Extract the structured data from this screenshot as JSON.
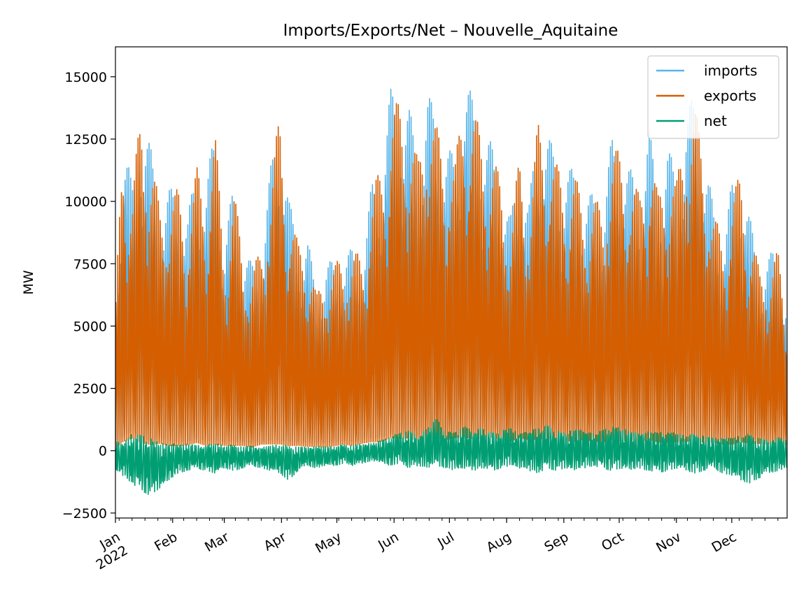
{
  "chart_data": {
    "type": "line",
    "title": "Imports/Exports/Net – Nouvelle_Aquitaine",
    "xlabel": "",
    "ylabel": "MW",
    "xlim": [
      "2022-01-01",
      "2022-12-31"
    ],
    "ylim": [
      -2700,
      16200
    ],
    "y_ticks": [
      {
        "value": -2500,
        "label": "−2500"
      },
      {
        "value": 0,
        "label": "0"
      },
      {
        "value": 2500,
        "label": "2500"
      },
      {
        "value": 5000,
        "label": "5000"
      },
      {
        "value": 7500,
        "label": "7500"
      },
      {
        "value": 10000,
        "label": "10000"
      },
      {
        "value": 12500,
        "label": "12500"
      },
      {
        "value": 15000,
        "label": "15000"
      }
    ],
    "x_ticks": [
      {
        "date": "2022-01-01",
        "label": "Jan",
        "label2": "2022"
      },
      {
        "date": "2022-02-01",
        "label": "Feb"
      },
      {
        "date": "2022-03-01",
        "label": "Mar"
      },
      {
        "date": "2022-04-01",
        "label": "Apr"
      },
      {
        "date": "2022-05-01",
        "label": "May"
      },
      {
        "date": "2022-06-01",
        "label": "Jun"
      },
      {
        "date": "2022-07-01",
        "label": "Jul"
      },
      {
        "date": "2022-08-01",
        "label": "Aug"
      },
      {
        "date": "2022-09-01",
        "label": "Sep"
      },
      {
        "date": "2022-10-01",
        "label": "Oct"
      },
      {
        "date": "2022-11-01",
        "label": "Nov"
      },
      {
        "date": "2022-12-01",
        "label": "Dec"
      }
    ],
    "legend": {
      "placement": "top-right"
    },
    "grid": false,
    "series": [
      {
        "name": "imports",
        "color": "#56b4e9",
        "x": [
          "2022-01-01",
          "2022-01-05",
          "2022-01-10",
          "2022-01-15",
          "2022-01-20",
          "2022-01-25",
          "2022-01-30",
          "2022-02-04",
          "2022-02-09",
          "2022-02-14",
          "2022-02-19",
          "2022-02-24",
          "2022-03-01",
          "2022-03-06",
          "2022-03-11",
          "2022-03-16",
          "2022-03-21",
          "2022-03-26",
          "2022-03-31",
          "2022-04-05",
          "2022-04-10",
          "2022-04-15",
          "2022-04-20",
          "2022-04-25",
          "2022-04-30",
          "2022-05-05",
          "2022-05-10",
          "2022-05-15",
          "2022-05-20",
          "2022-05-25",
          "2022-05-30",
          "2022-06-04",
          "2022-06-09",
          "2022-06-14",
          "2022-06-19",
          "2022-06-24",
          "2022-06-29",
          "2022-07-04",
          "2022-07-09",
          "2022-07-14",
          "2022-07-19",
          "2022-07-24",
          "2022-07-29",
          "2022-08-03",
          "2022-08-08",
          "2022-08-13",
          "2022-08-18",
          "2022-08-23",
          "2022-08-28",
          "2022-09-02",
          "2022-09-07",
          "2022-09-12",
          "2022-09-17",
          "2022-09-22",
          "2022-09-27",
          "2022-10-02",
          "2022-10-07",
          "2022-10-12",
          "2022-10-17",
          "2022-10-22",
          "2022-10-27",
          "2022-11-01",
          "2022-11-06",
          "2022-11-11",
          "2022-11-16",
          "2022-11-21",
          "2022-11-26",
          "2022-12-01",
          "2022-12-06",
          "2022-12-11",
          "2022-12-16",
          "2022-12-21",
          "2022-12-26",
          "2022-12-31"
        ],
        "peak": [
          5800,
          13400,
          10500,
          13900,
          12200,
          10000,
          10500,
          10600,
          9300,
          11600,
          10600,
          13100,
          8400,
          10700,
          8200,
          7500,
          8300,
          11300,
          14000,
          10100,
          8500,
          8700,
          6300,
          7600,
          7600,
          8000,
          8100,
          7900,
          10800,
          11700,
          14500,
          14500,
          13900,
          11900,
          14500,
          13400,
          12300,
          11800,
          15300,
          14000,
          13000,
          12300,
          11000,
          9300,
          12100,
          9800,
          13500,
          12800,
          11800,
          11200,
          11400,
          10000,
          10400,
          10000,
          12600,
          12200,
          11300,
          10600,
          13100,
          10500,
          12400,
          11000,
          13600,
          14300,
          12100,
          9800,
          8700,
          10700,
          11400,
          9300,
          7400,
          7800,
          8300,
          5800
        ],
        "trough": [
          200,
          300,
          600,
          250,
          150,
          300,
          200,
          150,
          200,
          250,
          200,
          150,
          200,
          150,
          200,
          150,
          250,
          200,
          150,
          150,
          200,
          150,
          200,
          150,
          200,
          250,
          200,
          300,
          300,
          300,
          400,
          350,
          400,
          300,
          350,
          400,
          350,
          450,
          400,
          350,
          400,
          450,
          400,
          350,
          450,
          400,
          350,
          400,
          300,
          350,
          300,
          400,
          350,
          300,
          350,
          300,
          350,
          300,
          350,
          300,
          250,
          300,
          250,
          300,
          250,
          300,
          250,
          200,
          300,
          250,
          300,
          250,
          300,
          250
        ]
      },
      {
        "name": "exports",
        "color": "#d55e00",
        "x": [
          "2022-01-01",
          "2022-01-05",
          "2022-01-10",
          "2022-01-15",
          "2022-01-20",
          "2022-01-25",
          "2022-01-30",
          "2022-02-04",
          "2022-02-09",
          "2022-02-14",
          "2022-02-19",
          "2022-02-24",
          "2022-03-01",
          "2022-03-06",
          "2022-03-11",
          "2022-03-16",
          "2022-03-21",
          "2022-03-26",
          "2022-03-31",
          "2022-04-05",
          "2022-04-10",
          "2022-04-15",
          "2022-04-20",
          "2022-04-25",
          "2022-04-30",
          "2022-05-05",
          "2022-05-10",
          "2022-05-15",
          "2022-05-20",
          "2022-05-25",
          "2022-05-30",
          "2022-06-04",
          "2022-06-09",
          "2022-06-14",
          "2022-06-19",
          "2022-06-24",
          "2022-06-29",
          "2022-07-04",
          "2022-07-09",
          "2022-07-14",
          "2022-07-19",
          "2022-07-24",
          "2022-07-29",
          "2022-08-03",
          "2022-08-08",
          "2022-08-13",
          "2022-08-18",
          "2022-08-23",
          "2022-08-28",
          "2022-09-02",
          "2022-09-07",
          "2022-09-12",
          "2022-09-17",
          "2022-09-22",
          "2022-09-27",
          "2022-10-02",
          "2022-10-07",
          "2022-10-12",
          "2022-10-17",
          "2022-10-22",
          "2022-10-27",
          "2022-11-01",
          "2022-11-06",
          "2022-11-11",
          "2022-11-16",
          "2022-11-21",
          "2022-11-26",
          "2022-12-01",
          "2022-12-06",
          "2022-12-11",
          "2022-12-16",
          "2022-12-21",
          "2022-12-26",
          "2022-12-31"
        ],
        "peak": [
          5500,
          13100,
          10300,
          13900,
          12100,
          9800,
          10300,
          10500,
          9200,
          11400,
          10500,
          12800,
          8200,
          10600,
          8000,
          7300,
          8100,
          11000,
          13500,
          9900,
          8300,
          8600,
          6200,
          7500,
          7500,
          7900,
          8000,
          7800,
          10500,
          11400,
          13900,
          14000,
          13500,
          11600,
          14300,
          13000,
          12000,
          11500,
          14600,
          13600,
          12700,
          12000,
          10800,
          9100,
          11800,
          9600,
          13200,
          12500,
          11500,
          10900,
          11100,
          9800,
          10200,
          9700,
          12300,
          11900,
          11000,
          10300,
          12800,
          10200,
          12100,
          10700,
          13500,
          13900,
          11800,
          9600,
          8500,
          10400,
          11100,
          9100,
          7200,
          7600,
          8000,
          5500
        ],
        "trough": [
          0,
          100,
          300,
          50,
          0,
          100,
          0,
          0,
          50,
          100,
          0,
          0,
          50,
          0,
          50,
          0,
          100,
          50,
          0,
          0,
          50,
          0,
          50,
          0,
          50,
          100,
          50,
          150,
          150,
          150,
          250,
          200,
          250,
          150,
          200,
          250,
          200,
          300,
          250,
          200,
          250,
          300,
          250,
          200,
          300,
          250,
          200,
          250,
          150,
          200,
          150,
          250,
          200,
          150,
          200,
          150,
          200,
          150,
          200,
          150,
          100,
          150,
          100,
          150,
          100,
          150,
          100,
          50,
          150,
          100,
          150,
          100,
          150,
          100
        ]
      },
      {
        "name": "net",
        "color": "#009e73",
        "x": [
          "2022-01-01",
          "2022-01-05",
          "2022-01-10",
          "2022-01-15",
          "2022-01-20",
          "2022-01-25",
          "2022-01-30",
          "2022-02-04",
          "2022-02-09",
          "2022-02-14",
          "2022-02-19",
          "2022-02-24",
          "2022-03-01",
          "2022-03-06",
          "2022-03-11",
          "2022-03-16",
          "2022-03-21",
          "2022-03-26",
          "2022-03-31",
          "2022-04-05",
          "2022-04-10",
          "2022-04-15",
          "2022-04-20",
          "2022-04-25",
          "2022-04-30",
          "2022-05-05",
          "2022-05-10",
          "2022-05-15",
          "2022-05-20",
          "2022-05-25",
          "2022-05-30",
          "2022-06-04",
          "2022-06-09",
          "2022-06-14",
          "2022-06-19",
          "2022-06-24",
          "2022-06-29",
          "2022-07-04",
          "2022-07-09",
          "2022-07-14",
          "2022-07-19",
          "2022-07-24",
          "2022-07-29",
          "2022-08-03",
          "2022-08-08",
          "2022-08-13",
          "2022-08-18",
          "2022-08-23",
          "2022-08-28",
          "2022-09-02",
          "2022-09-07",
          "2022-09-12",
          "2022-09-17",
          "2022-09-22",
          "2022-09-27",
          "2022-10-02",
          "2022-10-07",
          "2022-10-12",
          "2022-10-17",
          "2022-10-22",
          "2022-10-27",
          "2022-11-01",
          "2022-11-06",
          "2022-11-11",
          "2022-11-16",
          "2022-11-21",
          "2022-11-26",
          "2022-12-01",
          "2022-12-06",
          "2022-12-11",
          "2022-12-16",
          "2022-12-21",
          "2022-12-26",
          "2022-12-31"
        ],
        "peak": [
          400,
          300,
          700,
          600,
          500,
          300,
          300,
          250,
          300,
          200,
          250,
          300,
          200,
          250,
          150,
          200,
          150,
          200,
          250,
          200,
          150,
          150,
          200,
          150,
          200,
          250,
          200,
          300,
          300,
          400,
          600,
          700,
          800,
          600,
          900,
          1300,
          800,
          700,
          1000,
          800,
          900,
          700,
          800,
          900,
          700,
          800,
          900,
          1000,
          800,
          700,
          900,
          800,
          700,
          800,
          1000,
          900,
          800,
          700,
          800,
          700,
          800,
          700,
          600,
          700,
          600,
          500,
          600,
          500,
          600,
          700,
          500,
          400,
          600,
          400
        ],
        "trough": [
          -800,
          -1000,
          -1300,
          -1600,
          -1800,
          -1500,
          -1200,
          -900,
          -800,
          -700,
          -800,
          -900,
          -700,
          -800,
          -700,
          -600,
          -700,
          -800,
          -900,
          -1200,
          -800,
          -600,
          -700,
          -600,
          -600,
          -500,
          -600,
          -500,
          -400,
          -500,
          -600,
          -500,
          -700,
          -600,
          -700,
          -600,
          -700,
          -800,
          -700,
          -800,
          -700,
          -800,
          -700,
          -600,
          -700,
          -800,
          -900,
          -700,
          -800,
          -700,
          -800,
          -700,
          -600,
          -700,
          -800,
          -700,
          -800,
          -700,
          -800,
          -900,
          -800,
          -700,
          -800,
          -900,
          -800,
          -700,
          -900,
          -1000,
          -1200,
          -1300,
          -1100,
          -900,
          -800,
          -700
        ]
      }
    ]
  }
}
